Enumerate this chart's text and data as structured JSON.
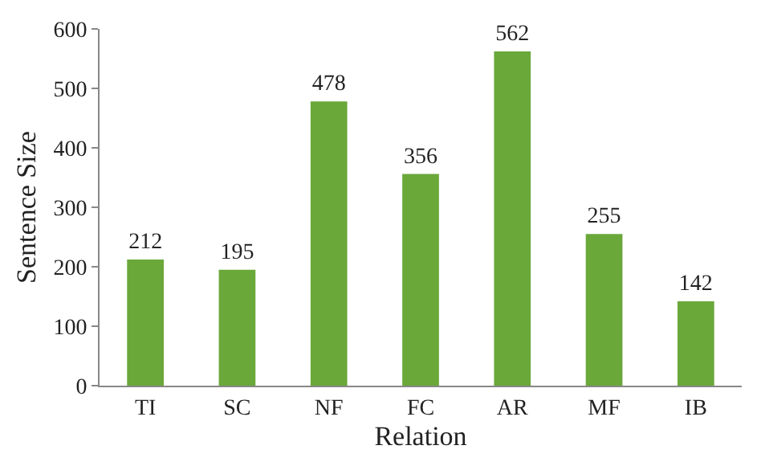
{
  "chart_data": {
    "type": "bar",
    "xlabel": "Relation",
    "ylabel": "Sentence Size",
    "categories": [
      "TI",
      "SC",
      "NF",
      "FC",
      "AR",
      "MF",
      "IB"
    ],
    "values": [
      212,
      195,
      478,
      356,
      562,
      255,
      142
    ],
    "color": "#6aa83a",
    "ylim": [
      0,
      600
    ],
    "yticks": [
      0,
      100,
      200,
      300,
      400,
      500,
      600
    ],
    "grid": false,
    "data_labels": true
  }
}
